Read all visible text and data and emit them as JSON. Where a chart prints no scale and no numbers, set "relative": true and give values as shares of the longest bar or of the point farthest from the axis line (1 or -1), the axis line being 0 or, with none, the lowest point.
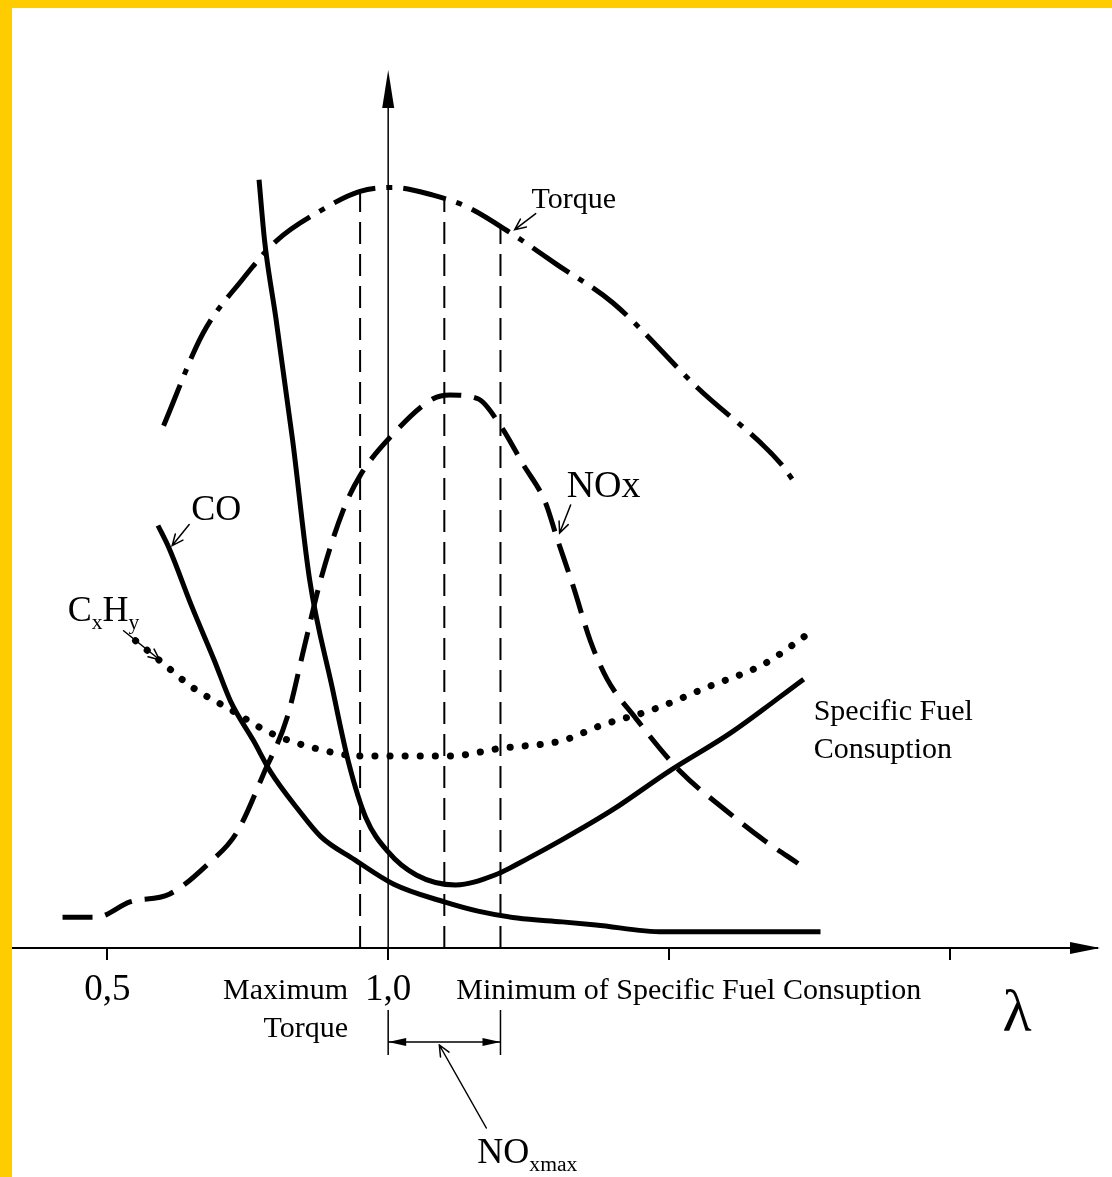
{
  "chart_data": {
    "type": "line",
    "relative": true,
    "xlabel": "λ",
    "xlim": [
      0.33,
      2.25
    ],
    "xticks": [
      {
        "value": 0.5,
        "label": "0,5"
      },
      {
        "value": 1.0,
        "label": "1,0"
      },
      {
        "value": 1.5,
        "label": null
      },
      {
        "value": 2.0,
        "label": null
      }
    ],
    "tick_labels": "x",
    "marker": "none",
    "series": [
      {
        "name": "Torque",
        "color": "#000000",
        "line_style": "dashdot",
        "x": [
          0.6,
          0.67,
          0.74,
          0.8,
          0.88,
          0.95,
          1.01,
          1.08,
          1.14,
          1.22,
          1.3,
          1.4,
          1.55,
          1.7,
          1.72
        ],
        "values": [
          0.68,
          0.8,
          0.87,
          0.92,
          0.96,
          0.985,
          0.99,
          0.98,
          0.965,
          0.93,
          0.89,
          0.84,
          0.73,
          0.63,
          0.61
        ]
      },
      {
        "name": "NOx",
        "color": "#000000",
        "line_style": "dashed",
        "x": [
          0.42,
          0.48,
          0.54,
          0.61,
          0.68,
          0.73,
          0.78,
          0.82,
          0.85,
          0.88,
          0.92,
          0.95,
          1.01,
          1.08,
          1.11,
          1.16,
          1.2,
          1.24,
          1.28,
          1.3,
          1.33,
          1.36,
          1.39,
          1.44,
          1.52,
          1.6,
          1.67,
          1.73
        ],
        "values": [
          0.04,
          0.04,
          0.06,
          0.07,
          0.11,
          0.15,
          0.23,
          0.3,
          0.39,
          0.48,
          0.57,
          0.615,
          0.67,
          0.715,
          0.72,
          0.715,
          0.68,
          0.63,
          0.58,
          0.535,
          0.47,
          0.4,
          0.35,
          0.3,
          0.23,
          0.18,
          0.14,
          0.11
        ]
      },
      {
        "name": "CO",
        "color": "#000000",
        "line_style": "solid",
        "x": [
          0.59,
          0.61,
          0.65,
          0.69,
          0.72,
          0.76,
          0.79,
          0.84,
          0.88,
          0.94,
          1.01,
          1.1,
          1.16,
          1.23,
          1.31,
          1.37,
          1.49,
          1.6,
          1.77
        ],
        "values": [
          0.55,
          0.52,
          0.445,
          0.375,
          0.32,
          0.27,
          0.23,
          0.18,
          0.145,
          0.115,
          0.083,
          0.06,
          0.048,
          0.039,
          0.034,
          0.03,
          0.021,
          0.021,
          0.021
        ]
      },
      {
        "name": "C$_{x}$H$_{y}$",
        "color": "#000000",
        "line_style": "dotted",
        "x": [
          0.55,
          0.6,
          0.65,
          0.72,
          0.79,
          0.87,
          0.95,
          1.02,
          1.11,
          1.2,
          1.31,
          1.38,
          1.47,
          1.57,
          1.67,
          1.75
        ],
        "values": [
          0.4,
          0.37,
          0.34,
          0.31,
          0.28,
          0.26,
          0.25,
          0.25,
          0.25,
          0.26,
          0.27,
          0.29,
          0.31,
          0.34,
          0.37,
          0.41
        ]
      },
      {
        "name": "Specific Fuel Consuption",
        "color": "#000000",
        "line_style": "solid",
        "x": [
          0.77,
          0.78,
          0.8,
          0.83,
          0.86,
          0.9,
          0.93,
          0.96,
          1.0,
          1.05,
          1.12,
          1.19,
          1.25,
          1.31,
          1.4,
          1.5,
          1.61,
          1.74
        ],
        "values": [
          1.0,
          0.92,
          0.82,
          0.66,
          0.48,
          0.34,
          0.24,
          0.17,
          0.125,
          0.095,
          0.082,
          0.095,
          0.117,
          0.141,
          0.18,
          0.23,
          0.28,
          0.35
        ]
      }
    ],
    "ref_lines": [
      {
        "axis": "x",
        "value": 1.0,
        "line_style": "solid"
      },
      {
        "axis": "x",
        "value": 0.95,
        "label": "Maximum Torque",
        "line_style": "dashed"
      },
      {
        "axis": "x",
        "value": 1.1,
        "label": "Minimum of Specific Fuel Consuption",
        "line_style": "dashed"
      },
      {
        "axis": "x",
        "value": 1.2,
        "line_style": "dashed"
      }
    ],
    "annotations": [
      "NO$_{xmax}$"
    ]
  }
}
